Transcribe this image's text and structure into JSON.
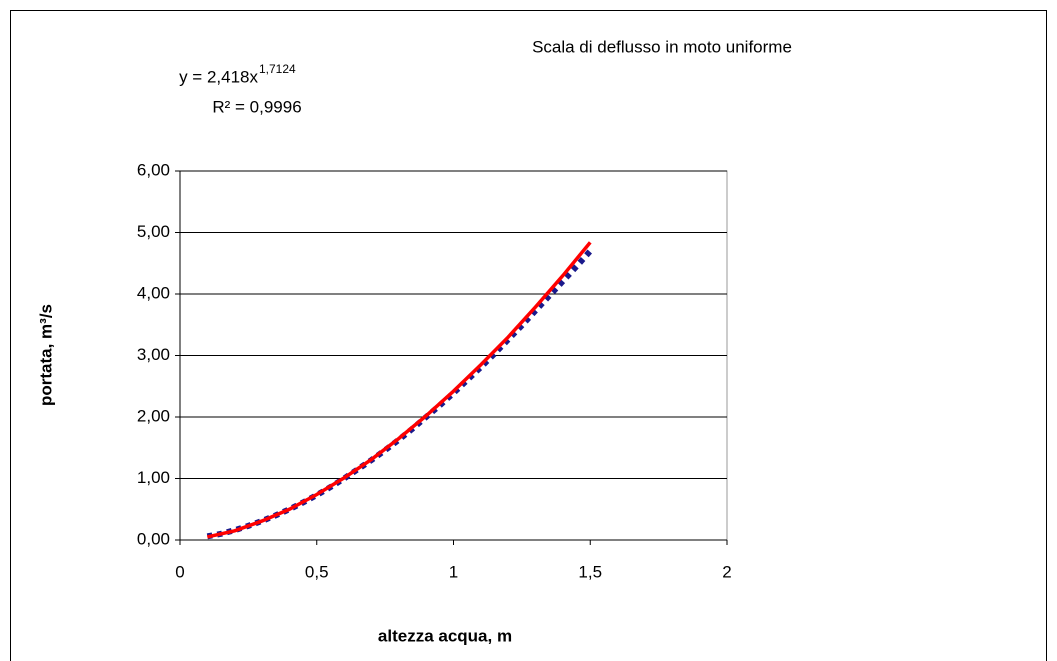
{
  "chart_data": {
    "type": "line",
    "title": "Scala di deflusso in moto uniforme",
    "equation": {
      "base": "y = 2,418x",
      "exponent": "1,7124"
    },
    "r_squared": "R² = 0,9996",
    "xlabel": "altezza acqua, m",
    "ylabel": "portata, m³/s",
    "xlim": [
      0,
      2
    ],
    "xticks": [
      0,
      {
        "value": 0.5,
        "label": "0,5"
      },
      1,
      {
        "value": 1.5,
        "label": "1,5"
      },
      2
    ],
    "ylim": [
      0,
      6
    ],
    "yticks": [
      {
        "value": 0,
        "label": "0,00"
      },
      {
        "value": 1,
        "label": "1,00"
      },
      {
        "value": 2,
        "label": "2,00"
      },
      {
        "value": 3,
        "label": "3,00"
      },
      {
        "value": 4,
        "label": "4,00"
      },
      {
        "value": 5,
        "label": "5,00"
      },
      {
        "value": 6,
        "label": "6,00"
      }
    ],
    "grid": true,
    "series": [
      {
        "color": "#1a1a8c",
        "dashed": true,
        "x": [
          0.1,
          0.15,
          0.2,
          0.25,
          0.3,
          0.35,
          0.4,
          0.45,
          0.5,
          0.55,
          0.6,
          0.65,
          0.7,
          0.75,
          0.8,
          0.85,
          0.9,
          0.95,
          1.0,
          1.05,
          1.1,
          1.15,
          1.2,
          1.25,
          1.3,
          1.35,
          1.4,
          1.45,
          1.5
        ],
        "values": [
          0.06,
          0.1,
          0.16,
          0.23,
          0.31,
          0.4,
          0.5,
          0.61,
          0.73,
          0.86,
          1.0,
          1.15,
          1.3,
          1.46,
          1.63,
          1.81,
          2.0,
          2.19,
          2.39,
          2.6,
          2.81,
          3.03,
          3.26,
          3.49,
          3.73,
          3.97,
          4.21,
          4.45,
          4.7
        ]
      },
      {
        "color": "#ff0000",
        "dashed": false,
        "x": [
          0.1,
          0.2,
          0.3,
          0.4,
          0.5,
          0.6,
          0.7,
          0.8,
          0.9,
          1.0,
          1.1,
          1.2,
          1.3,
          1.4,
          1.5
        ],
        "values": [
          0.05,
          0.15,
          0.31,
          0.5,
          0.74,
          1.01,
          1.31,
          1.65,
          2.02,
          2.42,
          2.85,
          3.3,
          3.79,
          4.3,
          4.84
        ]
      }
    ]
  }
}
